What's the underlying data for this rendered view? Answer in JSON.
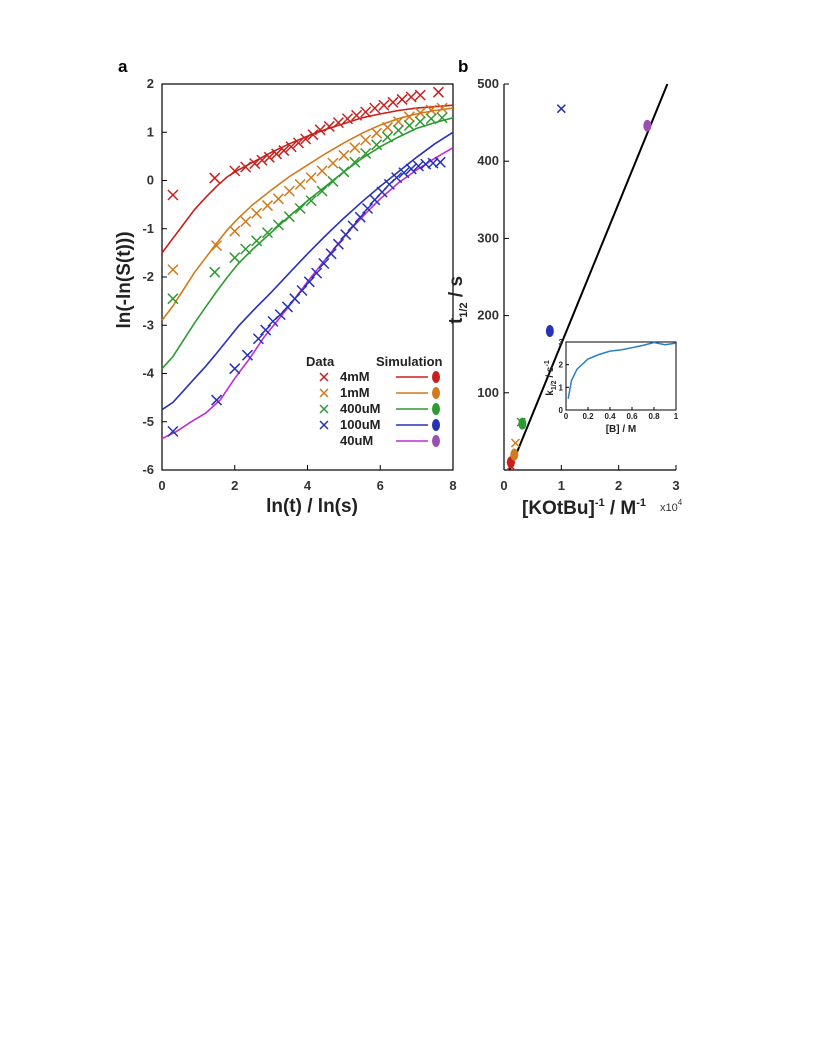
{
  "chart_data": [
    {
      "panel": "a",
      "type": "scatter",
      "xlabel": "ln(t) / ln(s)",
      "ylabel": "ln(-ln(S(t)))",
      "xlim": [
        0,
        8
      ],
      "ylim": [
        -6,
        2
      ],
      "xticks": [
        "0",
        "2",
        "4",
        "6",
        "8"
      ],
      "yticks": [
        "-6",
        "-5",
        "-4",
        "-3",
        "-2",
        "-1",
        "0",
        "1",
        "2"
      ],
      "legend": {
        "placement": "bottom-right",
        "data_header": "Data",
        "sim_header": "Simulation"
      },
      "series": [
        {
          "name": "4mM",
          "color": "#c8201e",
          "markers": [
            [
              0.3,
              -0.3
            ],
            [
              1.45,
              0.05
            ],
            [
              2.0,
              0.2
            ],
            [
              2.3,
              0.28
            ],
            [
              2.55,
              0.35
            ],
            [
              2.75,
              0.42
            ],
            [
              2.95,
              0.48
            ],
            [
              3.15,
              0.55
            ],
            [
              3.35,
              0.62
            ],
            [
              3.55,
              0.7
            ],
            [
              3.75,
              0.78
            ],
            [
              3.95,
              0.86
            ],
            [
              4.15,
              0.95
            ],
            [
              4.35,
              1.05
            ],
            [
              4.6,
              1.12
            ],
            [
              4.85,
              1.2
            ],
            [
              5.1,
              1.28
            ],
            [
              5.35,
              1.35
            ],
            [
              5.6,
              1.42
            ],
            [
              5.85,
              1.5
            ],
            [
              6.1,
              1.56
            ],
            [
              6.35,
              1.62
            ],
            [
              6.6,
              1.68
            ],
            [
              6.85,
              1.73
            ],
            [
              7.1,
              1.77
            ],
            [
              7.6,
              1.83
            ]
          ],
          "simulation": [
            [
              0,
              -1.5
            ],
            [
              0.3,
              -1.2
            ],
            [
              0.6,
              -0.9
            ],
            [
              0.9,
              -0.6
            ],
            [
              1.2,
              -0.35
            ],
            [
              1.5,
              -0.12
            ],
            [
              1.8,
              0.08
            ],
            [
              2.1,
              0.22
            ],
            [
              2.5,
              0.38
            ],
            [
              3.0,
              0.58
            ],
            [
              3.5,
              0.76
            ],
            [
              4.0,
              0.92
            ],
            [
              4.5,
              1.06
            ],
            [
              5.0,
              1.18
            ],
            [
              5.5,
              1.3
            ],
            [
              6.0,
              1.38
            ],
            [
              6.5,
              1.45
            ],
            [
              7.0,
              1.5
            ],
            [
              7.5,
              1.53
            ],
            [
              8.0,
              1.56
            ]
          ],
          "sim_marker_color": "#c8201e"
        },
        {
          "name": "1mM",
          "color": "#d17a1b",
          "markers": [
            [
              0.3,
              -1.85
            ],
            [
              1.5,
              -1.35
            ],
            [
              2.0,
              -1.05
            ],
            [
              2.3,
              -0.85
            ],
            [
              2.6,
              -0.68
            ],
            [
              2.9,
              -0.52
            ],
            [
              3.2,
              -0.38
            ],
            [
              3.5,
              -0.22
            ],
            [
              3.8,
              -0.08
            ],
            [
              4.1,
              0.06
            ],
            [
              4.4,
              0.2
            ],
            [
              4.7,
              0.36
            ],
            [
              5.0,
              0.52
            ],
            [
              5.3,
              0.68
            ],
            [
              5.6,
              0.84
            ],
            [
              5.9,
              0.98
            ],
            [
              6.2,
              1.1
            ],
            [
              6.5,
              1.22
            ],
            [
              6.8,
              1.32
            ],
            [
              7.1,
              1.4
            ],
            [
              7.4,
              1.46
            ],
            [
              7.7,
              1.5
            ]
          ],
          "simulation": [
            [
              0,
              -2.9
            ],
            [
              0.3,
              -2.6
            ],
            [
              0.6,
              -2.25
            ],
            [
              0.9,
              -1.9
            ],
            [
              1.2,
              -1.6
            ],
            [
              1.5,
              -1.3
            ],
            [
              1.8,
              -1.02
            ],
            [
              2.1,
              -0.78
            ],
            [
              2.5,
              -0.5
            ],
            [
              3.0,
              -0.2
            ],
            [
              3.5,
              0.08
            ],
            [
              4.0,
              0.32
            ],
            [
              4.5,
              0.56
            ],
            [
              5.0,
              0.78
            ],
            [
              5.5,
              0.98
            ],
            [
              6.0,
              1.15
            ],
            [
              6.5,
              1.28
            ],
            [
              7.0,
              1.38
            ],
            [
              7.5,
              1.45
            ],
            [
              8.0,
              1.5
            ]
          ],
          "sim_marker_color": "#d17a1b"
        },
        {
          "name": "400uM",
          "color": "#2e9a32",
          "markers": [
            [
              0.3,
              -2.45
            ],
            [
              1.45,
              -1.9
            ],
            [
              2.0,
              -1.6
            ],
            [
              2.3,
              -1.42
            ],
            [
              2.6,
              -1.25
            ],
            [
              2.9,
              -1.08
            ],
            [
              3.2,
              -0.92
            ],
            [
              3.5,
              -0.75
            ],
            [
              3.8,
              -0.58
            ],
            [
              4.1,
              -0.42
            ],
            [
              4.4,
              -0.22
            ],
            [
              4.7,
              -0.02
            ],
            [
              5.0,
              0.18
            ],
            [
              5.3,
              0.38
            ],
            [
              5.6,
              0.56
            ],
            [
              5.9,
              0.74
            ],
            [
              6.2,
              0.9
            ],
            [
              6.5,
              1.04
            ],
            [
              6.8,
              1.14
            ],
            [
              7.1,
              1.22
            ],
            [
              7.4,
              1.28
            ],
            [
              7.7,
              1.3
            ]
          ],
          "simulation": [
            [
              0,
              -3.9
            ],
            [
              0.3,
              -3.65
            ],
            [
              0.6,
              -3.3
            ],
            [
              0.9,
              -2.95
            ],
            [
              1.2,
              -2.62
            ],
            [
              1.5,
              -2.3
            ],
            [
              1.8,
              -2.0
            ],
            [
              2.1,
              -1.72
            ],
            [
              2.5,
              -1.42
            ],
            [
              3.0,
              -1.08
            ],
            [
              3.5,
              -0.74
            ],
            [
              4.0,
              -0.42
            ],
            [
              4.5,
              -0.12
            ],
            [
              5.0,
              0.18
            ],
            [
              5.5,
              0.46
            ],
            [
              6.0,
              0.7
            ],
            [
              6.5,
              0.9
            ],
            [
              7.0,
              1.08
            ],
            [
              7.5,
              1.2
            ],
            [
              8.0,
              1.3
            ]
          ],
          "sim_marker_color": "#2e9a32"
        },
        {
          "name": "100uM",
          "color": "#2732b5",
          "markers": [
            [
              0.3,
              -5.2
            ],
            [
              1.5,
              -4.55
            ],
            [
              2.0,
              -3.9
            ],
            [
              2.35,
              -3.62
            ],
            [
              2.65,
              -3.28
            ],
            [
              2.85,
              -3.1
            ],
            [
              3.05,
              -2.92
            ],
            [
              3.25,
              -2.78
            ],
            [
              3.45,
              -2.62
            ],
            [
              3.65,
              -2.45
            ],
            [
              3.85,
              -2.28
            ],
            [
              4.05,
              -2.1
            ],
            [
              4.25,
              -1.92
            ],
            [
              4.45,
              -1.72
            ],
            [
              4.65,
              -1.52
            ],
            [
              4.85,
              -1.32
            ],
            [
              5.05,
              -1.12
            ],
            [
              5.25,
              -0.94
            ],
            [
              5.45,
              -0.76
            ],
            [
              5.65,
              -0.58
            ],
            [
              5.85,
              -0.4
            ],
            [
              6.05,
              -0.24
            ],
            [
              6.25,
              -0.08
            ],
            [
              6.45,
              0.06
            ],
            [
              6.65,
              0.16
            ],
            [
              6.85,
              0.24
            ],
            [
              7.05,
              0.3
            ],
            [
              7.25,
              0.34
            ],
            [
              7.45,
              0.36
            ],
            [
              7.65,
              0.38
            ]
          ],
          "simulation": [
            [
              0,
              -4.75
            ],
            [
              0.3,
              -4.6
            ],
            [
              0.6,
              -4.35
            ],
            [
              0.9,
              -4.1
            ],
            [
              1.2,
              -3.85
            ],
            [
              1.5,
              -3.58
            ],
            [
              1.8,
              -3.3
            ],
            [
              2.1,
              -3.02
            ],
            [
              2.5,
              -2.7
            ],
            [
              3.0,
              -2.32
            ],
            [
              3.5,
              -1.92
            ],
            [
              4.0,
              -1.52
            ],
            [
              4.5,
              -1.14
            ],
            [
              5.0,
              -0.78
            ],
            [
              5.5,
              -0.44
            ],
            [
              6.0,
              -0.12
            ],
            [
              6.5,
              0.18
            ],
            [
              7.0,
              0.48
            ],
            [
              7.5,
              0.76
            ],
            [
              8.0,
              1.0
            ]
          ],
          "sim_marker_color": "#2732b5"
        },
        {
          "name": "40uM",
          "color": "#c02bd8",
          "markers": [],
          "simulation": [
            [
              0,
              -5.35
            ],
            [
              0.4,
              -5.2
            ],
            [
              0.8,
              -5.0
            ],
            [
              1.2,
              -4.82
            ],
            [
              1.6,
              -4.55
            ],
            [
              2.0,
              -4.1
            ],
            [
              2.4,
              -3.7
            ],
            [
              2.8,
              -3.25
            ],
            [
              3.2,
              -2.88
            ],
            [
              3.6,
              -2.5
            ],
            [
              4.0,
              -2.1
            ],
            [
              4.4,
              -1.72
            ],
            [
              4.8,
              -1.35
            ],
            [
              5.2,
              -1.0
            ],
            [
              5.6,
              -0.68
            ],
            [
              6.0,
              -0.38
            ],
            [
              6.5,
              -0.05
            ],
            [
              7.0,
              0.22
            ],
            [
              7.5,
              0.46
            ],
            [
              8.0,
              0.68
            ]
          ],
          "sim_marker_color": "#9b4fb0"
        }
      ]
    },
    {
      "panel": "b",
      "type": "scatter",
      "xlabel": "[KOtBu]",
      "xlabel_sup": "-1",
      "xlabel_units": " / M",
      "xlabel_units_sup": "-1",
      "x_multiplier": "x10",
      "x_multiplier_sup": "4",
      "ylabel": "t",
      "ylabel_sub": "1/2",
      "ylabel_units": " / s",
      "xlim": [
        0,
        3
      ],
      "ylim": [
        0,
        500
      ],
      "xticks": [
        "0",
        "1",
        "2",
        "3"
      ],
      "yticks": [
        "100",
        "200",
        "300",
        "400",
        "500"
      ],
      "fit_line": [
        [
          0.1,
          0
        ],
        [
          2.85,
          500
        ]
      ],
      "data_markers": [
        {
          "x": 0.12,
          "y": 5,
          "color": "#c8201e"
        },
        {
          "x": 0.2,
          "y": 35,
          "color": "#d17a1b"
        },
        {
          "x": 0.3,
          "y": 62,
          "color": "#2e9a32"
        },
        {
          "x": 1.0,
          "y": 468,
          "color": "#2732b5"
        }
      ],
      "sim_markers": [
        {
          "x": 0.12,
          "y": 10,
          "color": "#c8201e"
        },
        {
          "x": 0.18,
          "y": 20,
          "color": "#d17a1b"
        },
        {
          "x": 0.32,
          "y": 60,
          "color": "#2e9a32"
        },
        {
          "x": 0.8,
          "y": 180,
          "color": "#2732b5"
        },
        {
          "x": 2.5,
          "y": 446,
          "color": "#9b4fb0"
        }
      ],
      "inset": {
        "type": "line",
        "xlabel": "[B] / M",
        "ylabel": "k",
        "ylabel_sub": "1/2",
        "ylabel_units": " / s",
        "ylabel_units_sup": "-1",
        "xlim": [
          0,
          1
        ],
        "ylim": [
          0,
          3
        ],
        "xticks": [
          "0",
          "0.2",
          "0.4",
          "0.6",
          "0.8",
          "1"
        ],
        "yticks": [
          "0",
          "1",
          "2",
          "3"
        ],
        "color": "#2b7fc4",
        "x": [
          0.02,
          0.05,
          0.1,
          0.2,
          0.3,
          0.4,
          0.5,
          0.6,
          0.7,
          0.8,
          0.9,
          1.0
        ],
        "y": [
          0.5,
          1.3,
          1.8,
          2.25,
          2.45,
          2.6,
          2.65,
          2.75,
          2.85,
          2.98,
          2.88,
          2.95
        ]
      }
    }
  ]
}
